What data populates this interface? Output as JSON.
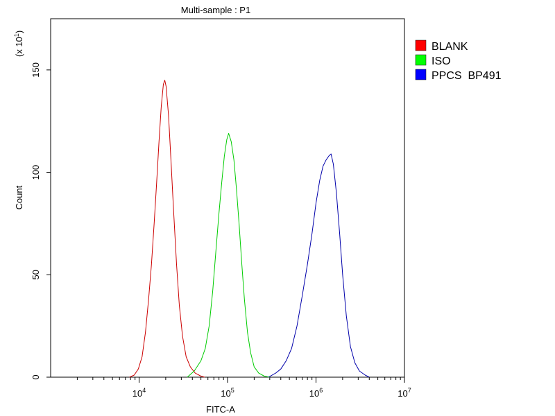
{
  "chart_data": {
    "type": "line",
    "title": "Multi-sample : P1",
    "xlabel": "FITC-A",
    "ylabel": "Count",
    "y_multiplier": "(x 10",
    "y_multiplier_exp": "1",
    "y_multiplier_close": ")",
    "x_scale": "log",
    "xlim": [
      1000,
      10000000
    ],
    "ylim": [
      0,
      175
    ],
    "x_ticks": [
      {
        "base": "10",
        "exp": "4",
        "value": 10000
      },
      {
        "base": "10",
        "exp": "5",
        "value": 100000
      },
      {
        "base": "10",
        "exp": "6",
        "value": 1000000
      },
      {
        "base": "10",
        "exp": "7",
        "value": 10000000
      }
    ],
    "y_ticks": [
      {
        "label": "0",
        "value": 0
      },
      {
        "label": "50",
        "value": 50
      },
      {
        "label": "100",
        "value": 100
      },
      {
        "label": "150",
        "value": 150
      }
    ],
    "grid": false,
    "legend_position": "right",
    "series": [
      {
        "name": "BLANK",
        "color": "#cc0000",
        "swatch": "#ff0000",
        "points": [
          [
            7800,
            0
          ],
          [
            8800,
            1
          ],
          [
            9800,
            4
          ],
          [
            10800,
            10
          ],
          [
            11800,
            22
          ],
          [
            12800,
            38
          ],
          [
            13800,
            55
          ],
          [
            14800,
            75
          ],
          [
            15800,
            95
          ],
          [
            16800,
            115
          ],
          [
            17800,
            132
          ],
          [
            18800,
            143
          ],
          [
            19500,
            145
          ],
          [
            20200,
            142
          ],
          [
            21500,
            128
          ],
          [
            22800,
            108
          ],
          [
            24500,
            82
          ],
          [
            26500,
            55
          ],
          [
            28500,
            35
          ],
          [
            31000,
            20
          ],
          [
            34000,
            10
          ],
          [
            38000,
            5
          ],
          [
            43000,
            2
          ],
          [
            50000,
            0.5
          ],
          [
            55000,
            0
          ]
        ]
      },
      {
        "name": "ISO",
        "color": "#00cc00",
        "swatch": "#00ff00",
        "points": [
          [
            35000,
            0
          ],
          [
            42000,
            3
          ],
          [
            50000,
            8
          ],
          [
            56000,
            14
          ],
          [
            62000,
            25
          ],
          [
            68000,
            42
          ],
          [
            74000,
            62
          ],
          [
            80000,
            80
          ],
          [
            86000,
            95
          ],
          [
            92000,
            108
          ],
          [
            98000,
            116
          ],
          [
            103000,
            119
          ],
          [
            110000,
            115
          ],
          [
            118000,
            106
          ],
          [
            126000,
            92
          ],
          [
            135000,
            75
          ],
          [
            145000,
            55
          ],
          [
            155000,
            38
          ],
          [
            168000,
            22
          ],
          [
            182000,
            12
          ],
          [
            200000,
            5
          ],
          [
            225000,
            2
          ],
          [
            260000,
            0.5
          ],
          [
            300000,
            0
          ]
        ]
      },
      {
        "name": "PPCS  BP491",
        "color": "#0000aa",
        "swatch": "#0000ff",
        "points": [
          [
            290000,
            0
          ],
          [
            350000,
            2
          ],
          [
            400000,
            4
          ],
          [
            460000,
            8
          ],
          [
            530000,
            14
          ],
          [
            610000,
            25
          ],
          [
            700000,
            40
          ],
          [
            800000,
            55
          ],
          [
            900000,
            70
          ],
          [
            1000000,
            85
          ],
          [
            1100000,
            96
          ],
          [
            1200000,
            103
          ],
          [
            1300000,
            106
          ],
          [
            1400000,
            108
          ],
          [
            1480000,
            109
          ],
          [
            1570000,
            104
          ],
          [
            1700000,
            90
          ],
          [
            1850000,
            70
          ],
          [
            2000000,
            50
          ],
          [
            2200000,
            30
          ],
          [
            2450000,
            15
          ],
          [
            2750000,
            7
          ],
          [
            3100000,
            3
          ],
          [
            3600000,
            1
          ],
          [
            4000000,
            0
          ]
        ]
      }
    ]
  }
}
